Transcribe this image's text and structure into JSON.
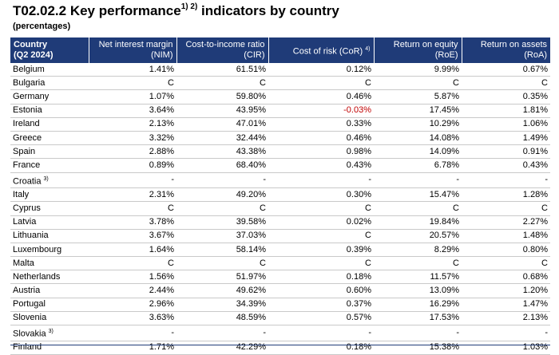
{
  "title": {
    "text": "T02.02.2 Key performance",
    "sup": "1) 2)",
    "rest": "indicators by country"
  },
  "subtitle": "(percentages)",
  "headers": {
    "country": [
      "Country",
      "(Q2 2024)"
    ],
    "nim": [
      "Net interest margin",
      "(NIM)"
    ],
    "cir": [
      "Cost-to-income ratio",
      "(CIR)"
    ],
    "cor": {
      "text": "Cost of risk (CoR)",
      "sup": "4)"
    },
    "roe": [
      "Return on equity",
      "(RoE)"
    ],
    "roa": [
      "Return on assets",
      "(RoA)"
    ]
  },
  "rows": [
    {
      "country": "Belgium",
      "sup": "",
      "nim": "1.41%",
      "cir": "61.51%",
      "cor": "0.12%",
      "roe": "9.99%",
      "roa": "0.67%"
    },
    {
      "country": "Bulgaria",
      "sup": "",
      "nim": "C",
      "cir": "C",
      "cor": "C",
      "roe": "C",
      "roa": "C"
    },
    {
      "country": "Germany",
      "sup": "",
      "nim": "1.07%",
      "cir": "59.80%",
      "cor": "0.46%",
      "roe": "5.87%",
      "roa": "0.35%"
    },
    {
      "country": "Estonia",
      "sup": "",
      "nim": "3.64%",
      "cir": "43.95%",
      "cor": "-0.03%",
      "roe": "17.45%",
      "roa": "1.81%"
    },
    {
      "country": "Ireland",
      "sup": "",
      "nim": "2.13%",
      "cir": "47.01%",
      "cor": "0.33%",
      "roe": "10.29%",
      "roa": "1.06%"
    },
    {
      "country": "Greece",
      "sup": "",
      "nim": "3.32%",
      "cir": "32.44%",
      "cor": "0.46%",
      "roe": "14.08%",
      "roa": "1.49%"
    },
    {
      "country": "Spain",
      "sup": "",
      "nim": "2.88%",
      "cir": "43.38%",
      "cor": "0.98%",
      "roe": "14.09%",
      "roa": "0.91%"
    },
    {
      "country": "France",
      "sup": "",
      "nim": "0.89%",
      "cir": "68.40%",
      "cor": "0.43%",
      "roe": "6.78%",
      "roa": "0.43%"
    },
    {
      "country": "Croatia",
      "sup": "3)",
      "nim": "-",
      "cir": "-",
      "cor": "-",
      "roe": "-",
      "roa": "-"
    },
    {
      "country": "Italy",
      "sup": "",
      "nim": "2.31%",
      "cir": "49.20%",
      "cor": "0.30%",
      "roe": "15.47%",
      "roa": "1.28%"
    },
    {
      "country": "Cyprus",
      "sup": "",
      "nim": "C",
      "cir": "C",
      "cor": "C",
      "roe": "C",
      "roa": "C"
    },
    {
      "country": "Latvia",
      "sup": "",
      "nim": "3.78%",
      "cir": "39.58%",
      "cor": "0.02%",
      "roe": "19.84%",
      "roa": "2.27%"
    },
    {
      "country": "Lithuania",
      "sup": "",
      "nim": "3.67%",
      "cir": "37.03%",
      "cor": "C",
      "roe": "20.57%",
      "roa": "1.48%"
    },
    {
      "country": "Luxembourg",
      "sup": "",
      "nim": "1.64%",
      "cir": "58.14%",
      "cor": "0.39%",
      "roe": "8.29%",
      "roa": "0.80%"
    },
    {
      "country": "Malta",
      "sup": "",
      "nim": "C",
      "cir": "C",
      "cor": "C",
      "roe": "C",
      "roa": "C"
    },
    {
      "country": "Netherlands",
      "sup": "",
      "nim": "1.56%",
      "cir": "51.97%",
      "cor": "0.18%",
      "roe": "11.57%",
      "roa": "0.68%"
    },
    {
      "country": "Austria",
      "sup": "",
      "nim": "2.44%",
      "cir": "49.62%",
      "cor": "0.60%",
      "roe": "13.09%",
      "roa": "1.20%"
    },
    {
      "country": "Portugal",
      "sup": "",
      "nim": "2.96%",
      "cir": "34.39%",
      "cor": "0.37%",
      "roe": "16.29%",
      "roa": "1.47%"
    },
    {
      "country": "Slovenia",
      "sup": "",
      "nim": "3.63%",
      "cir": "48.59%",
      "cor": "0.57%",
      "roe": "17.53%",
      "roa": "2.13%"
    },
    {
      "country": "Slovakia",
      "sup": "3)",
      "nim": "-",
      "cir": "-",
      "cor": "-",
      "roe": "-",
      "roa": "-"
    },
    {
      "country": "Finland",
      "sup": "",
      "nim": "1.71%",
      "cir": "42.29%",
      "cor": "0.18%",
      "roe": "15.38%",
      "roa": "1.03%"
    }
  ],
  "colors": {
    "header_bg": "#1f3b78",
    "negative": "#c00000"
  }
}
